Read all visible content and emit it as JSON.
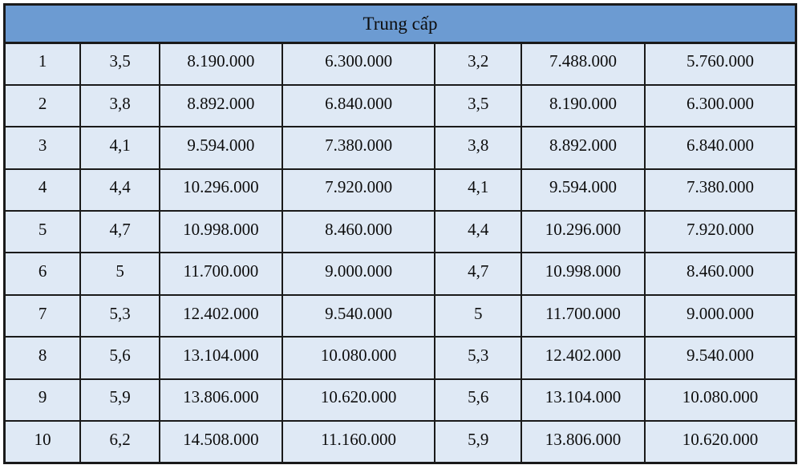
{
  "colors": {
    "header_bg": "#6c9bd2",
    "cell_bg": "#dfe9f5",
    "border": "#1a1a1a"
  },
  "table": {
    "title": "Trung cấp",
    "rows": [
      [
        "1",
        "3,5",
        "8.190.000",
        "6.300.000",
        "3,2",
        "7.488.000",
        "5.760.000"
      ],
      [
        "2",
        "3,8",
        "8.892.000",
        "6.840.000",
        "3,5",
        "8.190.000",
        "6.300.000"
      ],
      [
        "3",
        "4,1",
        "9.594.000",
        "7.380.000",
        "3,8",
        "8.892.000",
        "6.840.000"
      ],
      [
        "4",
        "4,4",
        "10.296.000",
        "7.920.000",
        "4,1",
        "9.594.000",
        "7.380.000"
      ],
      [
        "5",
        "4,7",
        "10.998.000",
        "8.460.000",
        "4,4",
        "10.296.000",
        "7.920.000"
      ],
      [
        "6",
        "5",
        "11.700.000",
        "9.000.000",
        "4,7",
        "10.998.000",
        "8.460.000"
      ],
      [
        "7",
        "5,3",
        "12.402.000",
        "9.540.000",
        "5",
        "11.700.000",
        "9.000.000"
      ],
      [
        "8",
        "5,6",
        "13.104.000",
        "10.080.000",
        "5,3",
        "12.402.000",
        "9.540.000"
      ],
      [
        "9",
        "5,9",
        "13.806.000",
        "10.620.000",
        "5,6",
        "13.104.000",
        "10.080.000"
      ],
      [
        "10",
        "6,2",
        "14.508.000",
        "11.160.000",
        "5,9",
        "13.806.000",
        "10.620.000"
      ]
    ]
  }
}
